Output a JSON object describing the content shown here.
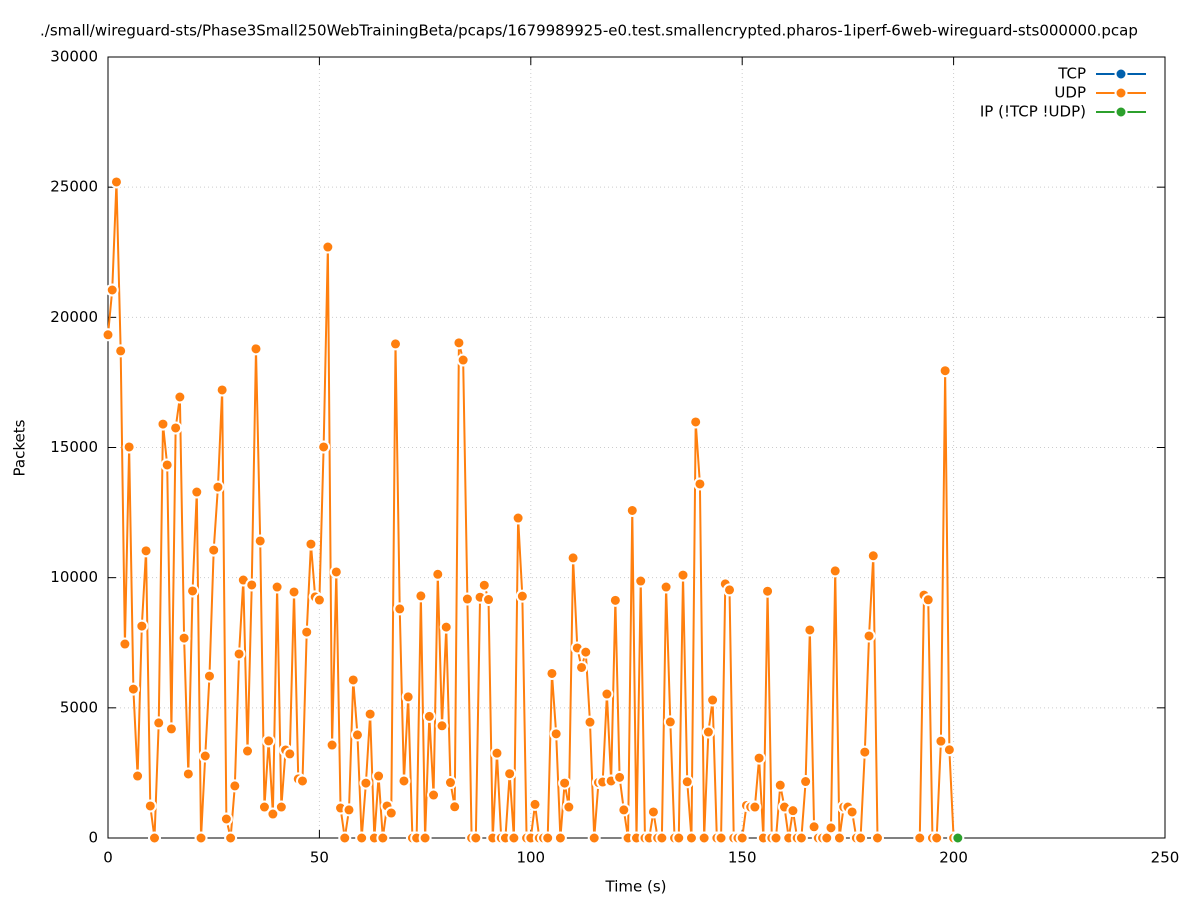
{
  "chart_data": {
    "type": "line",
    "title": "./small/wireguard-sts/Phase3Small250WebTrainingBeta/pcaps/1679989925-e0.test.smallencrypted.pharos-1iperf-6web-wireguard-sts000000.pcap",
    "x_label": "Time (s)",
    "y_label": "Packets",
    "xlim": [
      0,
      250
    ],
    "xticks": [
      0,
      50,
      100,
      150,
      200,
      250
    ],
    "ylim": [
      0,
      30000
    ],
    "yticks": [
      0,
      5000,
      10000,
      15000,
      20000,
      25000,
      30000
    ],
    "grid": true,
    "legend": "top-right",
    "series": [
      {
        "name": "TCP",
        "color": "#0060ad",
        "x": [],
        "values": []
      },
      {
        "name": "UDP",
        "color": "#ff7f0e",
        "x": [
          0,
          1,
          2,
          3,
          4,
          5,
          6,
          7,
          8,
          9,
          10,
          11,
          12,
          13,
          14,
          15,
          16,
          17,
          18,
          19,
          20,
          21,
          22,
          23,
          24,
          25,
          26,
          27,
          28,
          29,
          30,
          31,
          32,
          33,
          34,
          35,
          36,
          37,
          38,
          39,
          40,
          41,
          42,
          43,
          44,
          45,
          46,
          47,
          48,
          49,
          50,
          51,
          52,
          53,
          54,
          55,
          56,
          57,
          58,
          59,
          60,
          61,
          62,
          63,
          64,
          65,
          66,
          67,
          68,
          69,
          70,
          71,
          72,
          73,
          74,
          75,
          76,
          77,
          78,
          79,
          80,
          81,
          82,
          83,
          84,
          85,
          86,
          87,
          88,
          89,
          90,
          91,
          92,
          93,
          94,
          95,
          96,
          97,
          98,
          99,
          100,
          101,
          102,
          103,
          104,
          105,
          106,
          107,
          108,
          109,
          110,
          111,
          112,
          113,
          114,
          115,
          116,
          117,
          118,
          119,
          120,
          121,
          122,
          123,
          124,
          125,
          126,
          127,
          128,
          129,
          130,
          131,
          132,
          133,
          134,
          135,
          136,
          137,
          138,
          139,
          140,
          141,
          142,
          143,
          144,
          145,
          146,
          147,
          148,
          149,
          150,
          151,
          152,
          153,
          154,
          155,
          156,
          157,
          158,
          159,
          160,
          161,
          162,
          163,
          164,
          165,
          166,
          167,
          168,
          169,
          170,
          171,
          172,
          173,
          174,
          175,
          176,
          177,
          178,
          179,
          180,
          181,
          182,
          183,
          184,
          185,
          186,
          187,
          188,
          189,
          190,
          191,
          192,
          193,
          194,
          195,
          196,
          197,
          198,
          199,
          200
        ],
        "values": [
          19330,
          21050,
          25200,
          18710,
          7450,
          15020,
          5720,
          2380,
          8140,
          11030,
          1230,
          0,
          4420,
          15900,
          14330,
          4190,
          15750,
          16940,
          7680,
          2460,
          9490,
          13290,
          0,
          3150,
          6220,
          11060,
          13480,
          17210,
          730,
          0,
          2000,
          7070,
          9910,
          3340,
          9720,
          18790,
          11410,
          1190,
          3730,
          920,
          9640,
          1190,
          3380,
          3230,
          9450,
          2270,
          2190,
          7910,
          11290,
          9260,
          9140,
          15020,
          22700,
          3570,
          10220,
          1150,
          0,
          1080,
          6070,
          3960,
          0,
          2110,
          4760,
          0,
          2380,
          0,
          1230,
          960,
          18980,
          8800,
          2190,
          5420,
          0,
          0,
          9300,
          0,
          4670,
          1650,
          10130,
          4310,
          8100,
          2130,
          1200,
          19020,
          18360,
          9180,
          0,
          0,
          9250,
          9710,
          9160,
          0,
          3260,
          0,
          0,
          2470,
          0,
          12290,
          9290,
          0,
          0,
          1290,
          0,
          0,
          0,
          6320,
          4000,
          0,
          2110,
          1190,
          10760,
          7300,
          6550,
          7140,
          4450,
          0,
          2130,
          2150,
          5530,
          2190,
          9130,
          2330,
          1080,
          0,
          12580,
          0,
          9870,
          0,
          0,
          1000,
          0,
          0,
          9640,
          4460,
          0,
          0,
          10100,
          2160,
          0,
          15980,
          13600,
          0,
          4070,
          5300,
          0,
          0,
          9760,
          9530,
          0,
          0,
          0,
          1250,
          1190,
          1190,
          3070,
          0,
          9480,
          0,
          0,
          2030,
          1190,
          0,
          1050,
          0,
          0,
          2170,
          7990,
          430,
          0,
          0,
          0,
          390,
          10260,
          0,
          1190,
          1190,
          1000,
          0,
          0,
          3300,
          7760,
          10840,
          0,
          null,
          null,
          null,
          null,
          null,
          null,
          null,
          null,
          null,
          0,
          9330,
          9150,
          0,
          0,
          3720,
          17950,
          3390,
          0
        ]
      },
      {
        "name": "IP (!TCP  !UDP)",
        "color": "#2ca02c",
        "x": [
          201
        ],
        "values": [
          0
        ]
      }
    ]
  }
}
